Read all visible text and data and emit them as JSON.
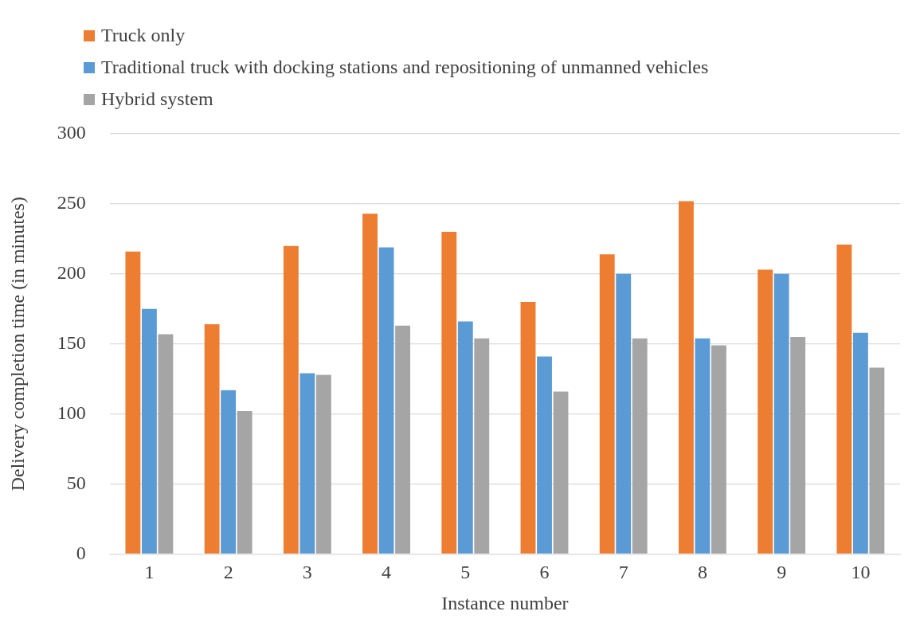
{
  "chart_data": {
    "type": "bar",
    "xlabel": "Instance number",
    "ylabel": "Delivery completion time (in minutes)",
    "categories": [
      "1",
      "2",
      "3",
      "4",
      "5",
      "6",
      "7",
      "8",
      "9",
      "10"
    ],
    "series": [
      {
        "name": "Truck only",
        "color": "#ed7d31",
        "values": [
          216,
          164,
          220,
          243,
          230,
          180,
          214,
          252,
          203,
          221
        ]
      },
      {
        "name": "Traditional truck with docking stations and repositioning of unmanned vehicles",
        "color": "#5b9bd5",
        "values": [
          175,
          117,
          129,
          219,
          166,
          141,
          200,
          154,
          200,
          158
        ]
      },
      {
        "name": "Hybrid system",
        "color": "#a5a5a5",
        "values": [
          157,
          102,
          128,
          163,
          154,
          116,
          154,
          149,
          155,
          133
        ]
      }
    ],
    "ylim": [
      0,
      300
    ],
    "yticks": [
      0,
      50,
      100,
      150,
      200,
      250,
      300
    ],
    "grid": "y",
    "legend": "top left"
  }
}
